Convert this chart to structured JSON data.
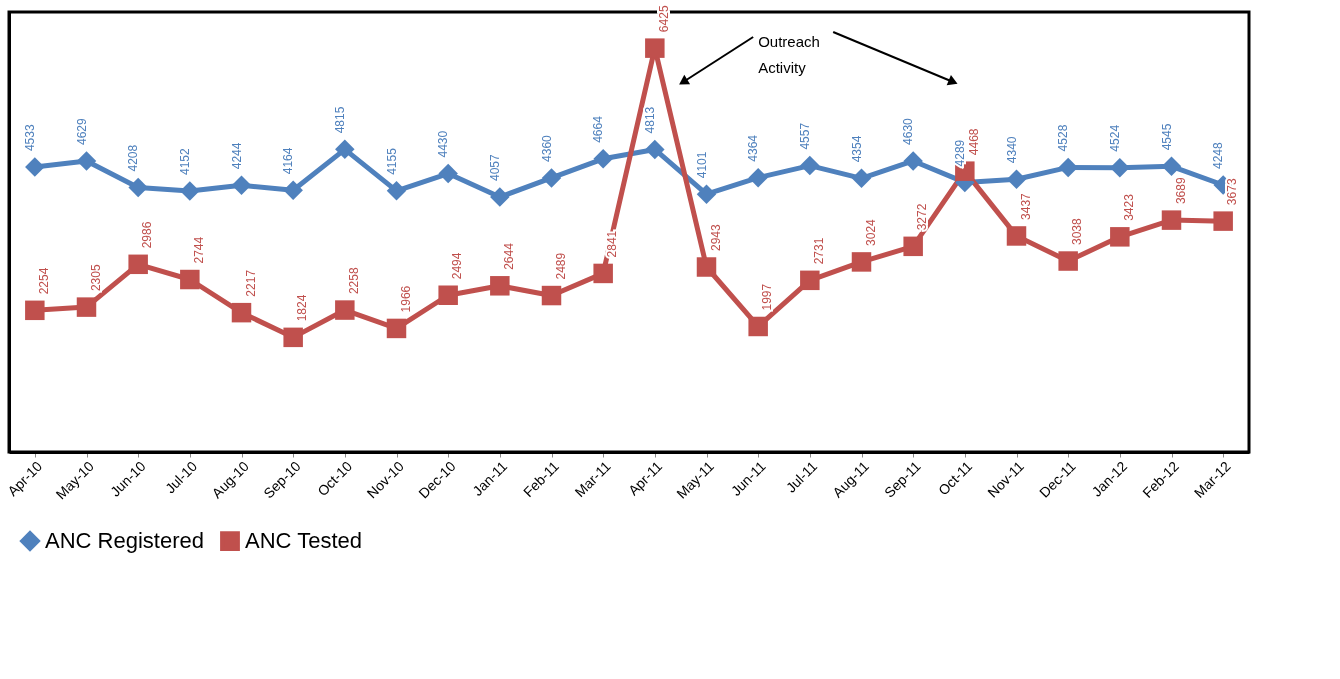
{
  "chart_data": {
    "type": "line",
    "categories": [
      "Apr-10",
      "May-10",
      "Jun-10",
      "Jul-10",
      "Aug-10",
      "Sep-10",
      "Oct-10",
      "Nov-10",
      "Dec-10",
      "Jan-11",
      "Feb-11",
      "Mar-11",
      "Apr-11",
      "May-11",
      "Jun-11",
      "Jul-11",
      "Aug-11",
      "Sep-11",
      "Oct-11",
      "Nov-11",
      "Dec-11",
      "Jan-12",
      "Feb-12",
      "Mar-12"
    ],
    "series": [
      {
        "name": "ANC Registered",
        "color": "#4f81bd",
        "marker": "diamond",
        "values": [
          4533,
          4629,
          4208,
          4152,
          4244,
          4164,
          4815,
          4155,
          4430,
          4057,
          4360,
          4664,
          4813,
          4101,
          4364,
          4557,
          4354,
          4630,
          4289,
          4340,
          4528,
          4524,
          4545,
          4248
        ]
      },
      {
        "name": "ANC Tested",
        "color": "#c0504d",
        "marker": "square",
        "values": [
          2254,
          2305,
          2986,
          2744,
          2217,
          1824,
          2258,
          1966,
          2494,
          2644,
          2489,
          2841,
          6425,
          2943,
          1997,
          2731,
          3024,
          3272,
          4468,
          3437,
          3038,
          3423,
          3689,
          3673
        ]
      }
    ],
    "ylim": [
      0,
      7000
    ],
    "tick_labels": "x",
    "grid": false,
    "legend": "bottom",
    "data_labels": true,
    "line_style": "solid",
    "annotations": [
      "Outreach Activity"
    ]
  }
}
